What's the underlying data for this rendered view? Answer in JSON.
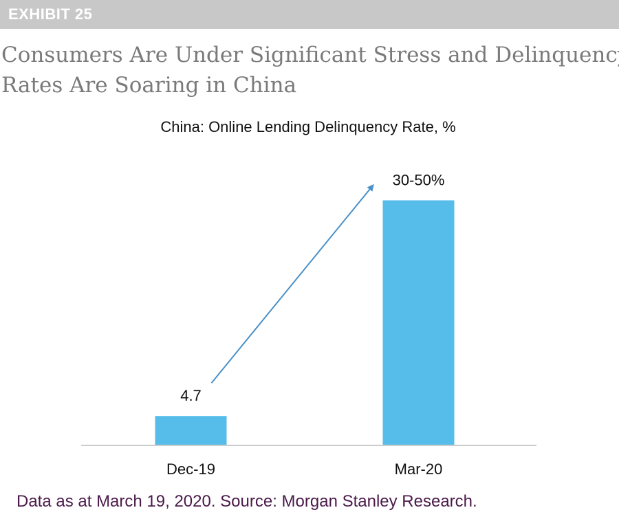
{
  "exhibit": {
    "label": "EXHIBIT 25"
  },
  "headline": {
    "line1": "Consumers Are Under Significant Stress and Delinquency",
    "line2": "Rates Are Soaring in China"
  },
  "chart_data": {
    "type": "bar",
    "title": "China: Online Lending Delinquency Rate, %",
    "categories": [
      "Dec-19",
      "Mar-20"
    ],
    "values": [
      4.7,
      40
    ],
    "data_labels": [
      "4.7",
      "30-50%"
    ],
    "xlabel": "",
    "ylabel": "",
    "ylim": [
      0,
      40.5
    ],
    "grid": false,
    "bar_color": "#56bdea",
    "annotations": [
      {
        "type": "arrow",
        "from": "Dec-19",
        "to": "Mar-20",
        "color": "#4a90c8"
      }
    ]
  },
  "colors": {
    "exhibit_bg": "#c8c8c8",
    "headline": "#7a7a7a",
    "source": "#4b1a4a",
    "axis": "#cccccc"
  },
  "source": {
    "text": "Data as at March 19, 2020. Source: Morgan Stanley Research."
  }
}
